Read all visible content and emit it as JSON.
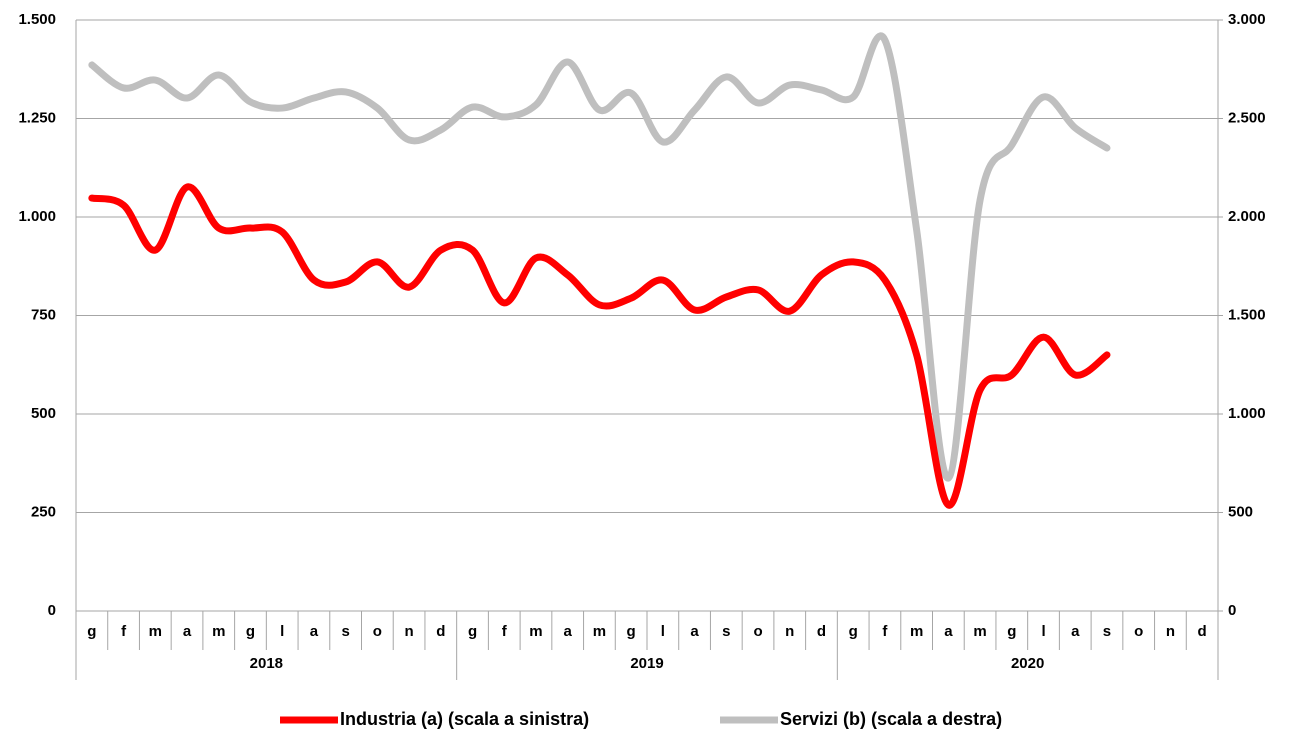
{
  "chart_data": {
    "type": "line",
    "categories": [
      "g",
      "f",
      "m",
      "a",
      "m",
      "g",
      "l",
      "a",
      "s",
      "o",
      "n",
      "d",
      "g",
      "f",
      "m",
      "a",
      "m",
      "g",
      "l",
      "a",
      "s",
      "o",
      "n",
      "d",
      "g",
      "f",
      "m",
      "a",
      "m",
      "g",
      "l",
      "a",
      "s",
      "o",
      "n",
      "d"
    ],
    "years": [
      "2018",
      "2019",
      "2020"
    ],
    "series": [
      {
        "name": "Industria (a) (scala a sinistra)",
        "color": "#ff0000",
        "axis": "y",
        "values": [
          1048,
          1030,
          916,
          1076,
          972,
          972,
          962,
          840,
          835,
          886,
          822,
          916,
          916,
          782,
          896,
          853,
          777,
          794,
          840,
          764,
          797,
          815,
          761,
          853,
          886,
          840,
          650,
          269,
          561,
          599,
          695,
          599,
          650,
          null,
          null,
          null
        ]
      },
      {
        "name": "Servizi (b) (scala a destra)",
        "color": "#bfbfbf",
        "axis": "y2",
        "values": [
          2772,
          2655,
          2695,
          2604,
          2721,
          2584,
          2553,
          2604,
          2635,
          2553,
          2391,
          2442,
          2558,
          2508,
          2569,
          2787,
          2543,
          2629,
          2381,
          2543,
          2711,
          2579,
          2670,
          2645,
          2609,
          2898,
          1934,
          675,
          2086,
          2365,
          2609,
          2452,
          2350,
          null,
          null,
          null
        ]
      }
    ],
    "ylim": [
      0,
      1500
    ],
    "yticks": [
      0,
      250,
      500,
      750,
      {
        "value": 1000,
        "label": "1.000"
      },
      {
        "value": 1250,
        "label": "1.250"
      },
      {
        "value": 1500,
        "label": "1.500"
      }
    ],
    "y2lim": [
      0,
      3000
    ],
    "y2ticks": [
      0,
      500,
      {
        "value": 1000,
        "label": "1.000"
      },
      {
        "value": 1500,
        "label": "1.500"
      },
      {
        "value": 2000,
        "label": "2.000"
      },
      {
        "value": 2500,
        "label": "2.500"
      },
      {
        "value": 3000,
        "label": "3.000"
      }
    ],
    "grid": true,
    "legend": "bottom"
  }
}
